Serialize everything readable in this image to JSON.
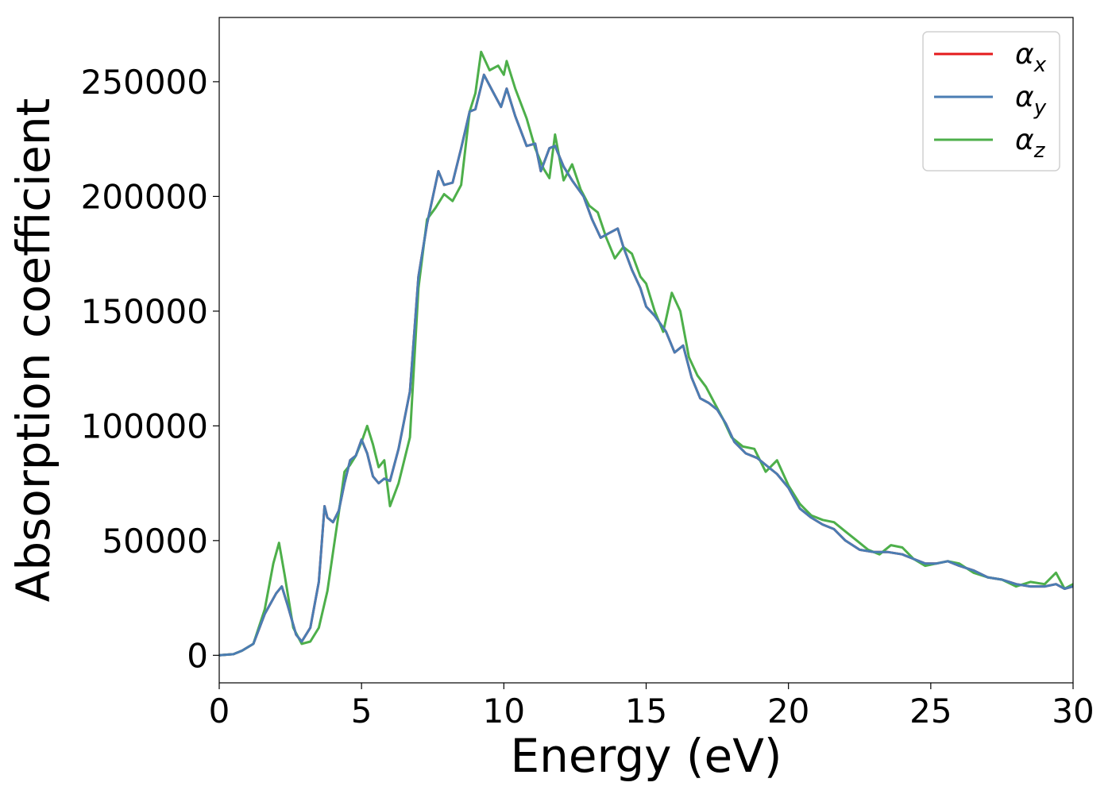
{
  "chart_data": {
    "type": "line",
    "title": "",
    "xlabel": "Energy (eV)",
    "ylabel": "Absorption coefficient",
    "xlim": [
      0,
      30
    ],
    "ylim": [
      -12000,
      278000
    ],
    "xticks": [
      0,
      5,
      10,
      15,
      20,
      25,
      30
    ],
    "yticks": [
      0,
      50000,
      100000,
      150000,
      200000,
      250000
    ],
    "xtick_labels": [
      "0",
      "5",
      "10",
      "15",
      "20",
      "25",
      "30"
    ],
    "ytick_labels": [
      "0",
      "50000",
      "100000",
      "150000",
      "200000",
      "250000"
    ],
    "grid": false,
    "legend_position": "top-right",
    "series": [
      {
        "name": "α_x",
        "label_main": "α",
        "label_sub": "x",
        "color": "#e41a1c",
        "x": [
          0,
          0.5,
          0.8,
          1.2,
          1.6,
          2.0,
          2.2,
          2.4,
          2.7,
          2.9,
          3.2,
          3.5,
          3.7,
          3.8,
          4.0,
          4.2,
          4.4,
          4.6,
          4.8,
          5.0,
          5.2,
          5.4,
          5.6,
          5.8,
          6.0,
          6.3,
          6.7,
          7.0,
          7.3,
          7.7,
          7.9,
          8.2,
          8.5,
          8.8,
          9.0,
          9.3,
          9.6,
          9.9,
          10.1,
          10.4,
          10.8,
          11.1,
          11.3,
          11.6,
          11.8,
          12.1,
          12.4,
          12.8,
          13.1,
          13.4,
          13.7,
          14.0,
          14.2,
          14.5,
          14.8,
          15.0,
          15.3,
          15.7,
          16.0,
          16.3,
          16.6,
          16.9,
          17.2,
          17.5,
          17.8,
          18.1,
          18.5,
          18.9,
          19.2,
          19.6,
          20.0,
          20.4,
          20.8,
          21.2,
          21.6,
          22.0,
          22.5,
          23.0,
          23.5,
          24.0,
          24.4,
          24.8,
          25.2,
          25.6,
          26.0,
          26.5,
          27.0,
          27.5,
          28.0,
          28.5,
          29.0,
          29.4,
          29.7,
          30.0
        ],
        "y": [
          0,
          500,
          2000,
          5000,
          18000,
          27000,
          30000,
          22000,
          9000,
          6000,
          12000,
          32000,
          65000,
          60000,
          58000,
          63000,
          75000,
          85000,
          87000,
          94000,
          88000,
          78000,
          75000,
          77000,
          76000,
          90000,
          115000,
          165000,
          188000,
          211000,
          205000,
          206000,
          221000,
          237000,
          238000,
          253000,
          246000,
          239000,
          247000,
          235000,
          222000,
          223000,
          211000,
          221000,
          222000,
          213000,
          207000,
          200000,
          190000,
          182000,
          184000,
          186000,
          178000,
          168000,
          160000,
          152000,
          148000,
          141000,
          132000,
          135000,
          121000,
          112000,
          110000,
          107000,
          101000,
          93000,
          88000,
          86000,
          83000,
          79000,
          73000,
          64000,
          60000,
          57000,
          55000,
          50000,
          46000,
          45000,
          45000,
          44000,
          42000,
          40000,
          40000,
          41000,
          39000,
          37000,
          34000,
          33000,
          31000,
          30000,
          30000,
          31000,
          29000,
          30000
        ]
      },
      {
        "name": "α_y",
        "label_main": "α",
        "label_sub": "y",
        "color": "#4a7db3",
        "x": [
          0,
          0.5,
          0.8,
          1.2,
          1.6,
          2.0,
          2.2,
          2.4,
          2.7,
          2.9,
          3.2,
          3.5,
          3.7,
          3.8,
          4.0,
          4.2,
          4.4,
          4.6,
          4.8,
          5.0,
          5.2,
          5.4,
          5.6,
          5.8,
          6.0,
          6.3,
          6.7,
          7.0,
          7.3,
          7.7,
          7.9,
          8.2,
          8.5,
          8.8,
          9.0,
          9.3,
          9.6,
          9.9,
          10.1,
          10.4,
          10.8,
          11.1,
          11.3,
          11.6,
          11.8,
          12.1,
          12.4,
          12.8,
          13.1,
          13.4,
          13.7,
          14.0,
          14.2,
          14.5,
          14.8,
          15.0,
          15.3,
          15.7,
          16.0,
          16.3,
          16.6,
          16.9,
          17.2,
          17.5,
          17.8,
          18.1,
          18.5,
          18.9,
          19.2,
          19.6,
          20.0,
          20.4,
          20.8,
          21.2,
          21.6,
          22.0,
          22.5,
          23.0,
          23.5,
          24.0,
          24.4,
          24.8,
          25.2,
          25.6,
          26.0,
          26.5,
          27.0,
          27.5,
          28.0,
          28.5,
          29.0,
          29.4,
          29.7,
          30.0
        ],
        "y": [
          0,
          500,
          2000,
          5000,
          18000,
          27000,
          30000,
          22000,
          9000,
          6000,
          12000,
          32000,
          65000,
          60000,
          58000,
          63000,
          75000,
          85000,
          87000,
          94000,
          88000,
          78000,
          75000,
          77000,
          76000,
          90000,
          115000,
          165000,
          188000,
          211000,
          205000,
          206000,
          221000,
          237000,
          238000,
          253000,
          246000,
          239000,
          247000,
          235000,
          222000,
          223000,
          211000,
          221000,
          222000,
          213000,
          207000,
          200000,
          190000,
          182000,
          184000,
          186000,
          178000,
          168000,
          160000,
          152000,
          148000,
          141000,
          132000,
          135000,
          121000,
          112000,
          110000,
          107000,
          101000,
          93000,
          88000,
          86000,
          83000,
          79000,
          73000,
          64000,
          60000,
          57000,
          55000,
          50000,
          46000,
          45000,
          45000,
          44000,
          42000,
          40000,
          40000,
          41000,
          39000,
          37000,
          34000,
          33000,
          31000,
          30000,
          30000,
          31000,
          29000,
          30000
        ]
      },
      {
        "name": "α_z",
        "label_main": "α",
        "label_sub": "z",
        "color": "#4daf4a",
        "x": [
          0,
          0.5,
          0.8,
          1.2,
          1.6,
          1.9,
          2.1,
          2.3,
          2.6,
          2.9,
          3.2,
          3.5,
          3.8,
          4.0,
          4.2,
          4.4,
          4.6,
          4.8,
          5.0,
          5.2,
          5.4,
          5.6,
          5.8,
          6.0,
          6.3,
          6.7,
          7.0,
          7.3,
          7.6,
          7.9,
          8.2,
          8.5,
          8.8,
          9.0,
          9.2,
          9.5,
          9.8,
          10.0,
          10.1,
          10.4,
          10.8,
          11.1,
          11.4,
          11.6,
          11.8,
          12.1,
          12.4,
          12.7,
          13.0,
          13.3,
          13.6,
          13.9,
          14.2,
          14.5,
          14.8,
          15.0,
          15.3,
          15.6,
          15.9,
          16.2,
          16.5,
          16.8,
          17.1,
          17.4,
          17.7,
          18.0,
          18.4,
          18.8,
          19.2,
          19.6,
          20.0,
          20.4,
          20.8,
          21.2,
          21.6,
          22.0,
          22.4,
          22.8,
          23.2,
          23.6,
          24.0,
          24.4,
          24.8,
          25.2,
          25.6,
          26.0,
          26.5,
          27.0,
          27.5,
          28.0,
          28.5,
          29.0,
          29.4,
          29.7,
          30.0
        ],
        "y": [
          0,
          500,
          2000,
          5000,
          20000,
          40000,
          49000,
          35000,
          12000,
          5000,
          6000,
          12000,
          28000,
          45000,
          62000,
          80000,
          83000,
          87000,
          93000,
          100000,
          92000,
          82000,
          85000,
          65000,
          75000,
          95000,
          160000,
          190000,
          195000,
          201000,
          198000,
          205000,
          237000,
          245000,
          263000,
          255000,
          257000,
          253000,
          259000,
          247000,
          234000,
          221000,
          212000,
          208000,
          227000,
          207000,
          214000,
          203000,
          196000,
          193000,
          182000,
          173000,
          178000,
          175000,
          165000,
          162000,
          150000,
          141000,
          158000,
          150000,
          130000,
          122000,
          117000,
          110000,
          103000,
          95000,
          91000,
          90000,
          80000,
          85000,
          74000,
          66000,
          61000,
          59000,
          58000,
          54000,
          50000,
          46000,
          44000,
          48000,
          47000,
          42000,
          39000,
          40000,
          41000,
          40000,
          36000,
          34000,
          33000,
          30000,
          32000,
          31000,
          36000,
          29000,
          31000
        ]
      }
    ]
  }
}
